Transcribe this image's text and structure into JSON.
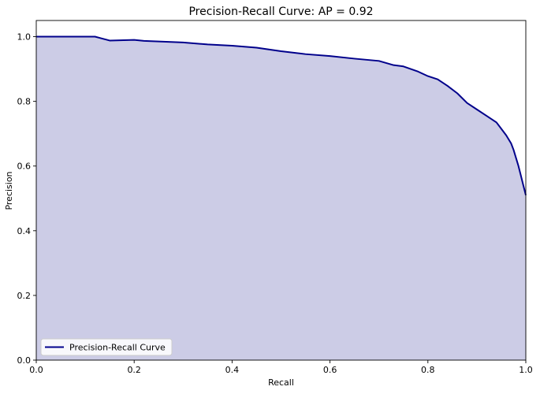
{
  "chart_data": {
    "type": "area",
    "title": "Precision-Recall Curve: AP = 0.92",
    "xlabel": "Recall",
    "ylabel": "Precision",
    "xlim": [
      0,
      1
    ],
    "ylim": [
      0,
      1.05
    ],
    "xticks": [
      "0.0",
      "0.2",
      "0.4",
      "0.6",
      "0.8",
      "1.0"
    ],
    "yticks": [
      "0.0",
      "0.2",
      "0.4",
      "0.6",
      "0.8",
      "1.0"
    ],
    "grid": false,
    "legend_position": "lower-left",
    "series": [
      {
        "name": "Precision-Recall Curve",
        "line_color": "#00008b",
        "fill_color": "#cccce6",
        "x": [
          0.0,
          0.05,
          0.1,
          0.12,
          0.15,
          0.2,
          0.22,
          0.25,
          0.3,
          0.35,
          0.4,
          0.45,
          0.5,
          0.55,
          0.6,
          0.65,
          0.7,
          0.73,
          0.75,
          0.78,
          0.8,
          0.82,
          0.84,
          0.86,
          0.88,
          0.9,
          0.92,
          0.94,
          0.95,
          0.96,
          0.97,
          0.975,
          0.98,
          0.985,
          0.99,
          0.995,
          1.0
        ],
        "y": [
          1.0,
          1.0,
          1.0,
          1.0,
          0.988,
          0.99,
          0.987,
          0.985,
          0.982,
          0.976,
          0.972,
          0.966,
          0.955,
          0.946,
          0.94,
          0.932,
          0.925,
          0.912,
          0.908,
          0.892,
          0.878,
          0.868,
          0.848,
          0.825,
          0.795,
          0.775,
          0.755,
          0.735,
          0.715,
          0.695,
          0.67,
          0.65,
          0.625,
          0.6,
          0.57,
          0.54,
          0.51
        ]
      }
    ]
  }
}
